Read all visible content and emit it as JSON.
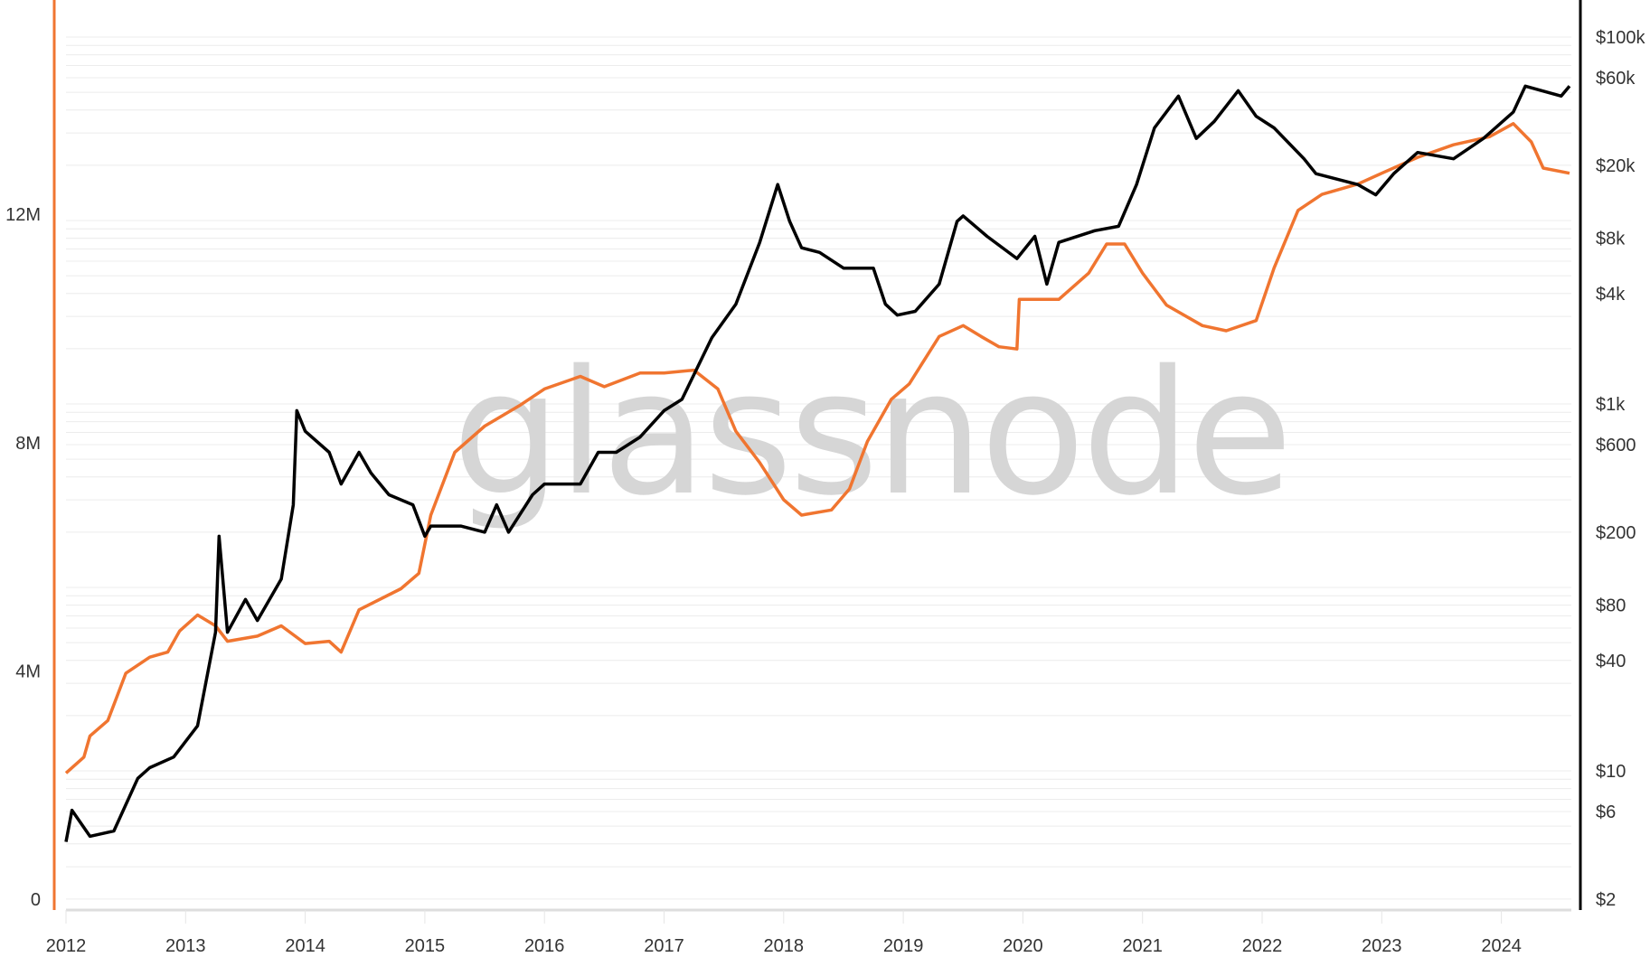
{
  "watermark": "glassnode",
  "colors": {
    "price": "#000000",
    "metric": "#f07530",
    "grid": "#ececec"
  },
  "chart_data": {
    "type": "line",
    "x_ticks": [
      "2012",
      "2013",
      "2014",
      "2015",
      "2016",
      "2017",
      "2018",
      "2019",
      "2020",
      "2021",
      "2022",
      "2023",
      "2024"
    ],
    "xlim": [
      2011.9,
      2024.65
    ],
    "left_axis": {
      "scale": "linear",
      "ylim": [
        0,
        15.7
      ],
      "unit": "M",
      "ticks": [
        {
          "v": 0,
          "label": "0"
        },
        {
          "v": 4,
          "label": "4M"
        },
        {
          "v": 8,
          "label": "8M"
        },
        {
          "v": 12,
          "label": "12M"
        }
      ],
      "color": "#f07530"
    },
    "right_axis": {
      "scale": "log",
      "ylim": [
        1.8,
        130000
      ],
      "color": "#000000",
      "ticks": [
        {
          "v": 2,
          "label": "$2"
        },
        {
          "v": 6,
          "label": "$6"
        },
        {
          "v": 10,
          "label": "$10"
        },
        {
          "v": 40,
          "label": "$40"
        },
        {
          "v": 80,
          "label": "$80"
        },
        {
          "v": 200,
          "label": "$200"
        },
        {
          "v": 600,
          "label": "$600"
        },
        {
          "v": 1000,
          "label": "$1k"
        },
        {
          "v": 4000,
          "label": "$4k"
        },
        {
          "v": 8000,
          "label": "$8k"
        },
        {
          "v": 20000,
          "label": "$20k"
        },
        {
          "v": 60000,
          "label": "$60k"
        },
        {
          "v": 100000,
          "label": "$100k"
        }
      ]
    },
    "grid": true,
    "series": [
      {
        "axis": "right",
        "color": "#000000",
        "x": [
          2012.0,
          2012.05,
          2012.2,
          2012.4,
          2012.6,
          2012.7,
          2012.9,
          2013.1,
          2013.25,
          2013.28,
          2013.35,
          2013.5,
          2013.6,
          2013.8,
          2013.9,
          2013.93,
          2014.0,
          2014.2,
          2014.3,
          2014.45,
          2014.55,
          2014.7,
          2014.9,
          2015.0,
          2015.05,
          2015.3,
          2015.5,
          2015.6,
          2015.7,
          2015.9,
          2016.0,
          2016.3,
          2016.45,
          2016.6,
          2016.8,
          2017.0,
          2017.15,
          2017.4,
          2017.6,
          2017.8,
          2017.95,
          2018.05,
          2018.15,
          2018.3,
          2018.5,
          2018.75,
          2018.85,
          2018.95,
          2019.1,
          2019.3,
          2019.45,
          2019.5,
          2019.7,
          2019.95,
          2020.1,
          2020.2,
          2020.3,
          2020.6,
          2020.8,
          2020.95,
          2021.1,
          2021.3,
          2021.45,
          2021.6,
          2021.8,
          2021.95,
          2022.1,
          2022.35,
          2022.45,
          2022.8,
          2022.95,
          2023.1,
          2023.3,
          2023.6,
          2023.85,
          2024.1,
          2024.2,
          2024.5,
          2024.57
        ],
        "y": [
          4.1,
          6.1,
          4.4,
          4.7,
          9.1,
          10.4,
          11.9,
          17.6,
          57,
          190,
          57,
          86,
          66,
          111,
          282,
          920,
          710,
          545,
          366,
          545,
          420,
          320,
          282,
          190,
          216,
          216,
          200,
          282,
          200,
          320,
          366,
          366,
          545,
          545,
          660,
          920,
          1060,
          2300,
          3500,
          7600,
          15700,
          9900,
          7100,
          6700,
          5500,
          5500,
          3500,
          3050,
          3200,
          4500,
          9900,
          10600,
          8200,
          6200,
          8200,
          4500,
          7600,
          8800,
          9300,
          15700,
          32000,
          47700,
          28000,
          34700,
          51000,
          37000,
          32000,
          21700,
          18000,
          15700,
          13800,
          18000,
          23500,
          21700,
          28000,
          39000,
          54000,
          47700,
          54000
        ]
      },
      {
        "axis": "left",
        "color": "#f07530",
        "x": [
          2012.0,
          2012.15,
          2012.2,
          2012.35,
          2012.5,
          2012.7,
          2012.85,
          2012.95,
          2013.1,
          2013.25,
          2013.35,
          2013.6,
          2013.8,
          2014.0,
          2014.2,
          2014.3,
          2014.45,
          2014.8,
          2014.95,
          2015.05,
          2015.25,
          2015.5,
          2015.8,
          2016.0,
          2016.3,
          2016.5,
          2016.8,
          2017.0,
          2017.25,
          2017.45,
          2017.6,
          2017.8,
          2018.0,
          2018.15,
          2018.4,
          2018.55,
          2018.7,
          2018.9,
          2019.05,
          2019.3,
          2019.5,
          2019.65,
          2019.8,
          2019.95,
          2019.97,
          2020.3,
          2020.55,
          2020.7,
          2020.85,
          2021.0,
          2021.2,
          2021.5,
          2021.7,
          2021.95,
          2022.1,
          2022.3,
          2022.5,
          2022.8,
          2023.0,
          2023.3,
          2023.6,
          2023.9,
          2024.1,
          2024.25,
          2024.35,
          2024.57
        ],
        "y": [
          2.21,
          2.49,
          2.86,
          3.13,
          3.96,
          4.24,
          4.33,
          4.7,
          4.98,
          4.79,
          4.52,
          4.61,
          4.79,
          4.48,
          4.52,
          4.33,
          5.07,
          5.44,
          5.71,
          6.73,
          7.83,
          8.29,
          8.66,
          8.94,
          9.16,
          8.98,
          9.22,
          9.22,
          9.27,
          8.94,
          8.2,
          7.65,
          7.0,
          6.73,
          6.82,
          7.19,
          8.02,
          8.76,
          9.03,
          9.86,
          10.05,
          9.86,
          9.68,
          9.64,
          10.51,
          10.51,
          10.97,
          11.48,
          11.48,
          10.97,
          10.41,
          10.05,
          9.96,
          10.14,
          11.06,
          12.07,
          12.35,
          12.53,
          12.72,
          13.0,
          13.22,
          13.36,
          13.59,
          13.27,
          12.81,
          12.72
        ]
      }
    ]
  }
}
